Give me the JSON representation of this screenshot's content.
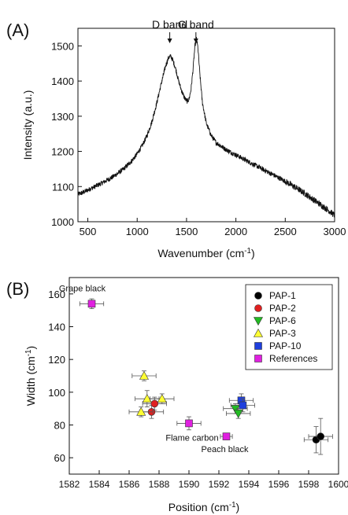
{
  "chart_data": [
    {
      "panel": "(A)",
      "type": "line",
      "xlabel": "Wavenumber (cm",
      "xlabel_sup": "-1",
      "xlabel_suffix": ")",
      "ylabel": "Intensity (a.u.)",
      "xlim": [
        400,
        3000
      ],
      "ylim": [
        1000,
        1550
      ],
      "xticks": [
        500,
        1000,
        1500,
        2000,
        2500,
        3000
      ],
      "yticks": [
        1000,
        1100,
        1200,
        1300,
        1400,
        1500
      ],
      "annotations": [
        {
          "text": "D band",
          "x": 1330
        },
        {
          "text": "G band",
          "x": 1595
        }
      ],
      "series": [
        {
          "points": [
            [
              400,
              1078
            ],
            [
              450,
              1083
            ],
            [
              500,
              1090
            ],
            [
              550,
              1097
            ],
            [
              600,
              1104
            ],
            [
              650,
              1111
            ],
            [
              700,
              1119
            ],
            [
              750,
              1127
            ],
            [
              800,
              1137
            ],
            [
              850,
              1147
            ],
            [
              900,
              1160
            ],
            [
              950,
              1175
            ],
            [
              1000,
              1193
            ],
            [
              1050,
              1216
            ],
            [
              1100,
              1245
            ],
            [
              1150,
              1285
            ],
            [
              1200,
              1340
            ],
            [
              1250,
              1400
            ],
            [
              1290,
              1445
            ],
            [
              1320,
              1468
            ],
            [
              1340,
              1470
            ],
            [
              1360,
              1460
            ],
            [
              1390,
              1435
            ],
            [
              1420,
              1400
            ],
            [
              1450,
              1372
            ],
            [
              1480,
              1352
            ],
            [
              1505,
              1342
            ],
            [
              1525,
              1348
            ],
            [
              1545,
              1375
            ],
            [
              1565,
              1430
            ],
            [
              1585,
              1500
            ],
            [
              1600,
              1520
            ],
            [
              1615,
              1495
            ],
            [
              1635,
              1420
            ],
            [
              1660,
              1340
            ],
            [
              1700,
              1280
            ],
            [
              1750,
              1245
            ],
            [
              1800,
              1225
            ],
            [
              1900,
              1205
            ],
            [
              2000,
              1190
            ],
            [
              2100,
              1175
            ],
            [
              2200,
              1160
            ],
            [
              2300,
              1145
            ],
            [
              2400,
              1130
            ],
            [
              2500,
              1115
            ],
            [
              2600,
              1098
            ],
            [
              2700,
              1080
            ],
            [
              2800,
              1060
            ],
            [
              2900,
              1040
            ],
            [
              2950,
              1030
            ],
            [
              3000,
              1018
            ]
          ]
        }
      ]
    },
    {
      "panel": "(B)",
      "type": "scatter",
      "xlabel": "Position (cm",
      "xlabel_sup": "-1",
      "xlabel_suffix": ")",
      "ylabel": "Width (cm",
      "ylabel_sup": "-1",
      "ylabel_suffix": ")",
      "xlim": [
        1582,
        1600
      ],
      "ylim": [
        50,
        170
      ],
      "xticks": [
        1582,
        1584,
        1586,
        1588,
        1590,
        1592,
        1594,
        1596,
        1598,
        1600
      ],
      "yticks": [
        60,
        80,
        100,
        120,
        140,
        160
      ],
      "legend_position": "top-right",
      "series": [
        {
          "name": "PAP-1",
          "marker": "circle",
          "color": "#000000",
          "points": [
            {
              "x": 1598.5,
              "y": 71,
              "xerr": 0.8,
              "yerr": 8
            },
            {
              "x": 1598.8,
              "y": 73,
              "xerr": 0.8,
              "yerr": 11
            }
          ]
        },
        {
          "name": "PAP-2",
          "marker": "circle",
          "color": "#e02020",
          "points": [
            {
              "x": 1587.5,
              "y": 88,
              "xerr": 0.8,
              "yerr": 4
            },
            {
              "x": 1587.7,
              "y": 93,
              "xerr": 0.8,
              "yerr": 4
            }
          ]
        },
        {
          "name": "PAP-6",
          "marker": "triangle-down",
          "color": "#22bb22",
          "points": [
            {
              "x": 1593.1,
              "y": 90,
              "xerr": 0.8,
              "yerr": 3
            },
            {
              "x": 1593.3,
              "y": 87,
              "xerr": 0.8,
              "yerr": 3
            }
          ]
        },
        {
          "name": "PAP-3",
          "marker": "triangle-up",
          "color": "#ffff33",
          "points": [
            {
              "x": 1587.0,
              "y": 110,
              "xerr": 0.8,
              "yerr": 3
            },
            {
              "x": 1587.2,
              "y": 96,
              "xerr": 0.8,
              "yerr": 5
            },
            {
              "x": 1588.2,
              "y": 96,
              "xerr": 0.8,
              "yerr": 3
            },
            {
              "x": 1586.8,
              "y": 88,
              "xerr": 0.8,
              "yerr": 3
            }
          ]
        },
        {
          "name": "PAP-10",
          "marker": "square",
          "color": "#1f3fdd",
          "points": [
            {
              "x": 1593.5,
              "y": 95,
              "xerr": 0.8,
              "yerr": 4
            },
            {
              "x": 1593.6,
              "y": 92,
              "xerr": 0.8,
              "yerr": 4
            }
          ]
        },
        {
          "name": "References",
          "marker": "square",
          "color": "#e020e0",
          "points": [
            {
              "x": 1583.5,
              "y": 154,
              "xerr": 0.8,
              "yerr": 3,
              "label": "Grape black"
            },
            {
              "x": 1590.0,
              "y": 81,
              "xerr": 0.8,
              "yerr": 4,
              "label": "Flame carbon"
            },
            {
              "x": 1592.5,
              "y": 73,
              "xerr": 0.4,
              "yerr": 2,
              "label": "Peach black"
            }
          ]
        }
      ]
    }
  ]
}
